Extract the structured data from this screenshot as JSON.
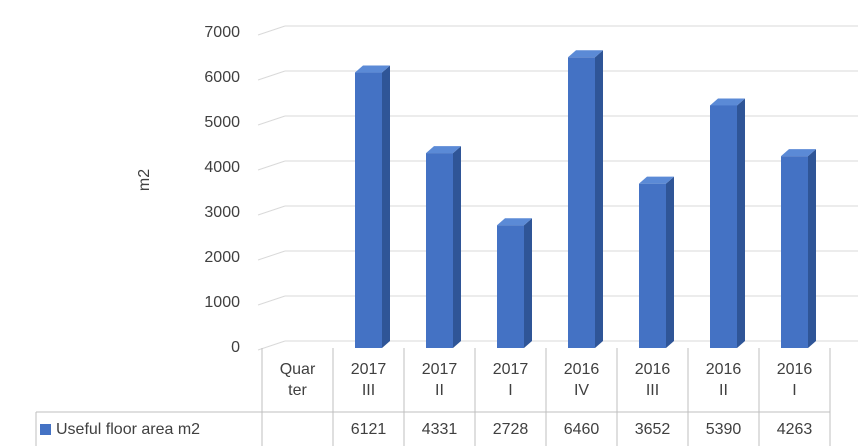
{
  "chart_data": {
    "type": "bar3d",
    "y_axis_label": "m2",
    "categories": [
      "Quarter",
      "2017 III",
      "2017 II",
      "2017 I",
      "2016 IV",
      "2016 III",
      "2016 II",
      "2016 I"
    ],
    "series": [
      {
        "name": "Useful floor area m2",
        "color": "#4472c4",
        "values": [
          null,
          6121,
          4331,
          2728,
          6460,
          3652,
          5390,
          4263
        ]
      }
    ],
    "ylim": [
      0,
      7000
    ],
    "yticks": [
      0,
      1000,
      2000,
      3000,
      4000,
      5000,
      6000,
      7000
    ],
    "grid": true
  }
}
